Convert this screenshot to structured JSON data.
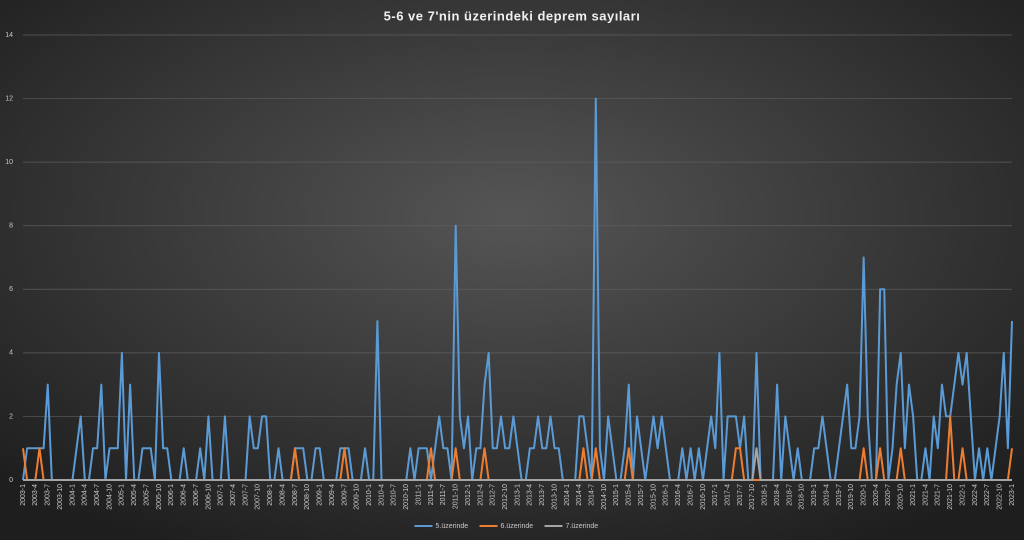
{
  "chart_data": {
    "type": "line",
    "title": "5-6 ve 7'nin üzerindeki  deprem sayıları",
    "categories": [
      "2003-1",
      null,
      null,
      "2003-4",
      null,
      null,
      "2003-7",
      null,
      null,
      "2003-10",
      null,
      null,
      "2004-1",
      null,
      null,
      "2004-4",
      null,
      null,
      "2004-7",
      null,
      null,
      "2004-10",
      null,
      null,
      "2005-1",
      null,
      null,
      "2005-4",
      null,
      null,
      "2005-7",
      null,
      null,
      "2005-10",
      null,
      null,
      "2006-1",
      null,
      null,
      "2006-4",
      null,
      null,
      "2006-7",
      null,
      null,
      "2006-10",
      null,
      null,
      "2007-1",
      null,
      null,
      "2007-4",
      null,
      null,
      "2007-7",
      null,
      null,
      "2007-10",
      null,
      null,
      "2008-1",
      null,
      null,
      "2008-4",
      null,
      null,
      "2008-7",
      null,
      null,
      "2008-10",
      null,
      null,
      "2009-1",
      null,
      null,
      "2009-4",
      null,
      null,
      "2009-7",
      null,
      null,
      "2009-10",
      null,
      null,
      "2010-1",
      null,
      null,
      "2010-4",
      null,
      null,
      "2010-7",
      null,
      null,
      "2010-10",
      null,
      null,
      "2011-1",
      null,
      null,
      "2011-4",
      null,
      null,
      "2011-7",
      null,
      null,
      "2011-10",
      null,
      null,
      "2012-1",
      null,
      null,
      "2012-4",
      null,
      null,
      "2012-7",
      null,
      null,
      "2012-10",
      null,
      null,
      "2013-1",
      null,
      null,
      "2013-4",
      null,
      null,
      "2013-7",
      null,
      null,
      "2013-10",
      null,
      null,
      "2014-1",
      null,
      null,
      "2014-4",
      null,
      null,
      "2014-7",
      null,
      null,
      "2014-10",
      null,
      null,
      "2015-1",
      null,
      null,
      "2015-4",
      null,
      null,
      "2015-7",
      null,
      null,
      "2015-10",
      null,
      null,
      "2016-1",
      null,
      null,
      "2016-4",
      null,
      null,
      "2016-7",
      null,
      null,
      "2016-10",
      null,
      null,
      "2017-1",
      null,
      null,
      "2017-4",
      null,
      null,
      "2017-7",
      null,
      null,
      "2017-10",
      null,
      null,
      "2018-1",
      null,
      null,
      "2018-4",
      null,
      null,
      "2018-7",
      null,
      null,
      "2018-10",
      null,
      null,
      "2019-1",
      null,
      null,
      "2019-4",
      null,
      null,
      "2019-7",
      null,
      null,
      "2019-10",
      null,
      null,
      "2020-1",
      null,
      null,
      "2020-4",
      null,
      null,
      "2020-7",
      null,
      null,
      "2020-10",
      null,
      null,
      "2021-1",
      null,
      null,
      "2021-4",
      null,
      null,
      "2021-7",
      null,
      null,
      "2021-10",
      null,
      null,
      "2022-1",
      null,
      null,
      "2022-4",
      null,
      null,
      "2022-7",
      null,
      null,
      "2022-10",
      null,
      null,
      "2023-1"
    ],
    "series": [
      {
        "name": "5.üzerinde",
        "color": "#5b9bd5",
        "values": [
          0,
          1,
          1,
          1,
          1,
          1,
          3,
          0,
          0,
          0,
          0,
          0,
          0,
          1,
          2,
          0,
          0,
          1,
          1,
          3,
          0,
          1,
          1,
          1,
          4,
          0,
          3,
          0,
          0,
          1,
          1,
          1,
          0,
          4,
          1,
          1,
          0,
          0,
          0,
          1,
          0,
          0,
          0,
          1,
          0,
          2,
          0,
          0,
          0,
          2,
          0,
          0,
          0,
          0,
          0,
          2,
          1,
          1,
          2,
          2,
          0,
          0,
          1,
          0,
          0,
          0,
          1,
          1,
          1,
          0,
          0,
          1,
          1,
          0,
          0,
          0,
          0,
          1,
          1,
          1,
          0,
          0,
          0,
          1,
          0,
          0,
          5,
          0,
          0,
          0,
          0,
          0,
          0,
          0,
          1,
          0,
          1,
          1,
          1,
          0,
          1,
          2,
          1,
          1,
          0,
          8,
          2,
          1,
          2,
          0,
          1,
          1,
          3,
          4,
          1,
          1,
          2,
          1,
          1,
          2,
          1,
          0,
          0,
          1,
          1,
          2,
          1,
          1,
          2,
          1,
          1,
          0,
          0,
          0,
          0,
          2,
          2,
          1,
          0,
          12,
          1,
          0,
          2,
          1,
          0,
          0,
          1,
          3,
          0,
          2,
          1,
          0,
          1,
          2,
          1,
          2,
          1,
          0,
          0,
          0,
          1,
          0,
          1,
          0,
          1,
          0,
          1,
          2,
          1,
          4,
          0,
          2,
          2,
          2,
          1,
          2,
          0,
          0,
          4,
          0,
          0,
          0,
          0,
          3,
          0,
          2,
          1,
          0,
          1,
          0,
          0,
          0,
          1,
          1,
          2,
          1,
          0,
          0,
          1,
          2,
          3,
          1,
          1,
          2,
          7,
          2,
          0,
          0,
          6,
          6,
          0,
          1,
          3,
          4,
          1,
          3,
          2,
          0,
          0,
          1,
          0,
          2,
          1,
          3,
          2,
          2,
          3,
          4,
          3,
          4,
          2,
          0,
          1,
          0,
          1,
          0,
          1,
          2,
          4,
          1,
          5
        ]
      },
      {
        "name": "6.üzerinde",
        "color": "#ed7d31",
        "values": [
          1,
          0,
          0,
          0,
          1,
          0,
          0,
          0,
          0,
          0,
          0,
          0,
          0,
          0,
          0,
          0,
          0,
          0,
          0,
          0,
          0,
          0,
          0,
          0,
          0,
          0,
          0,
          0,
          0,
          0,
          0,
          0,
          0,
          0,
          0,
          0,
          0,
          0,
          0,
          0,
          0,
          0,
          0,
          0,
          0,
          0,
          0,
          0,
          0,
          0,
          0,
          0,
          0,
          0,
          0,
          0,
          0,
          0,
          0,
          0,
          0,
          0,
          0,
          0,
          0,
          0,
          1,
          0,
          0,
          0,
          0,
          0,
          0,
          0,
          0,
          0,
          0,
          0,
          1,
          0,
          0,
          0,
          0,
          0,
          0,
          0,
          0,
          0,
          0,
          0,
          0,
          0,
          0,
          0,
          0,
          0,
          0,
          0,
          0,
          1,
          0,
          0,
          0,
          0,
          0,
          1,
          0,
          0,
          0,
          0,
          0,
          0,
          1,
          0,
          0,
          0,
          0,
          0,
          0,
          0,
          0,
          0,
          0,
          0,
          0,
          0,
          0,
          0,
          0,
          0,
          0,
          0,
          0,
          0,
          0,
          0,
          1,
          0,
          0,
          1,
          0,
          0,
          0,
          0,
          0,
          0,
          0,
          1,
          0,
          0,
          0,
          0,
          0,
          0,
          0,
          0,
          0,
          0,
          0,
          0,
          0,
          0,
          0,
          0,
          0,
          0,
          0,
          0,
          0,
          0,
          0,
          0,
          0,
          1,
          1,
          0,
          0,
          0,
          0,
          0,
          0,
          0,
          0,
          0,
          0,
          0,
          0,
          0,
          0,
          0,
          0,
          0,
          0,
          0,
          0,
          0,
          0,
          0,
          0,
          0,
          0,
          0,
          0,
          0,
          1,
          0,
          0,
          0,
          1,
          0,
          0,
          0,
          0,
          1,
          0,
          0,
          0,
          0,
          0,
          0,
          0,
          0,
          0,
          0,
          0,
          2,
          0,
          0,
          1,
          0,
          0,
          0,
          0,
          0,
          0,
          0,
          0,
          0,
          0,
          0,
          1
        ]
      },
      {
        "name": "7.üzerinde",
        "color": "#a5a5a5",
        "values": [
          0,
          0,
          0,
          0,
          0,
          0,
          0,
          0,
          0,
          0,
          0,
          0,
          0,
          0,
          0,
          0,
          0,
          0,
          0,
          0,
          0,
          0,
          0,
          0,
          0,
          0,
          0,
          0,
          0,
          0,
          0,
          0,
          0,
          0,
          0,
          0,
          0,
          0,
          0,
          0,
          0,
          0,
          0,
          0,
          0,
          0,
          0,
          0,
          0,
          0,
          0,
          0,
          0,
          0,
          0,
          0,
          0,
          0,
          0,
          0,
          0,
          0,
          0,
          0,
          0,
          0,
          0,
          0,
          0,
          0,
          0,
          0,
          0,
          0,
          0,
          0,
          0,
          0,
          0,
          0,
          0,
          0,
          0,
          0,
          0,
          0,
          0,
          0,
          0,
          0,
          0,
          0,
          0,
          0,
          0,
          0,
          0,
          0,
          0,
          0,
          0,
          0,
          0,
          0,
          0,
          0,
          0,
          0,
          0,
          0,
          0,
          0,
          0,
          0,
          0,
          0,
          0,
          0,
          0,
          0,
          0,
          0,
          0,
          0,
          0,
          0,
          0,
          0,
          0,
          0,
          0,
          0,
          0,
          0,
          0,
          0,
          0,
          0,
          0,
          0,
          0,
          0,
          0,
          0,
          0,
          0,
          0,
          0,
          0,
          0,
          0,
          0,
          0,
          0,
          0,
          0,
          0,
          0,
          0,
          0,
          0,
          0,
          0,
          0,
          0,
          0,
          0,
          0,
          0,
          0,
          0,
          0,
          0,
          0,
          0,
          0,
          0,
          0,
          1,
          0,
          0,
          0,
          0,
          0,
          0,
          0,
          0,
          0,
          0,
          0,
          0,
          0,
          0,
          0,
          0,
          0,
          0,
          0,
          0,
          0,
          0,
          0,
          0,
          0,
          0,
          0,
          0,
          0,
          0,
          0,
          0,
          0,
          0,
          0,
          0,
          0,
          0,
          0,
          0,
          0,
          0,
          0,
          0,
          0,
          0,
          0,
          0,
          0,
          0,
          0,
          0,
          0,
          0,
          0,
          0,
          0,
          0,
          0,
          0,
          0,
          0
        ]
      }
    ],
    "ylim": [
      0,
      14
    ],
    "yticks": [
      0,
      2,
      4,
      6,
      8,
      10,
      12,
      14
    ],
    "grid": true,
    "legend": "bottom"
  }
}
